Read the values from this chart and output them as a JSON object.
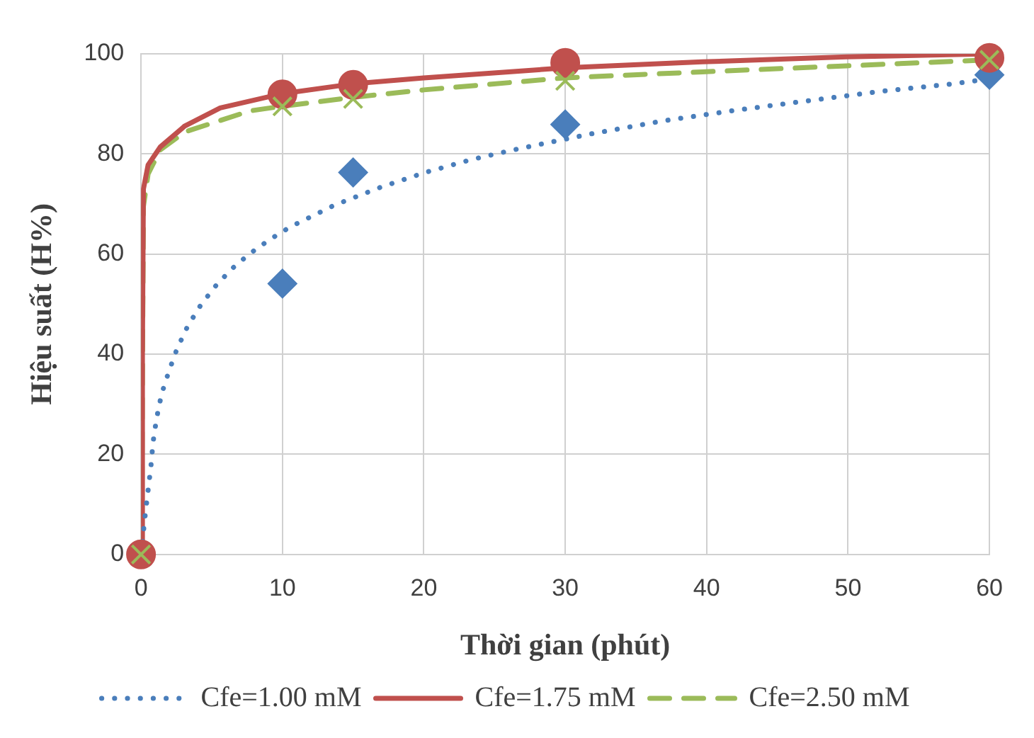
{
  "chart_data": {
    "type": "scatter",
    "xlabel": "Thời gian (phút)",
    "ylabel": "Hiệu suất (H%)",
    "xlim": [
      0,
      60
    ],
    "ylim": [
      0,
      100
    ],
    "xticks": [
      0,
      10,
      20,
      30,
      40,
      50,
      60
    ],
    "yticks": [
      0,
      20,
      40,
      60,
      80,
      100
    ],
    "grid": true,
    "legend": "bottom",
    "series": [
      {
        "type": "scatter",
        "color": "#4a7ebb",
        "marker": "diamond",
        "x": [
          10,
          15,
          30,
          60
        ],
        "values": [
          54.1,
          76.3,
          85.9,
          95.8
        ]
      },
      {
        "type": "scatter",
        "color": "#c0504d",
        "marker": "circle",
        "x": [
          0,
          10,
          15,
          30,
          60
        ],
        "values": [
          0,
          91.9,
          93.8,
          98.2,
          99.2
        ]
      },
      {
        "type": "scatter",
        "color": "#9bbb59",
        "marker": "cross",
        "x": [
          0,
          10,
          15,
          30,
          60
        ],
        "values": [
          0,
          89.5,
          91,
          94.6,
          98.8
        ]
      },
      {
        "type": "line",
        "name": "Cfe=1.00 mM",
        "color": "#4a7ebb",
        "line_style": "dotted",
        "marker": "none",
        "x": [
          0.05,
          0.15,
          0.3,
          0.5,
          0.7,
          0.85,
          1.1,
          1.45,
          1.96,
          2.55,
          3.3,
          4.2,
          5.2,
          6.4,
          7.7,
          9.1,
          10.6,
          13.7,
          16.9,
          20.1,
          23.4,
          26.8,
          31.8,
          36.9,
          42,
          47.1,
          52.3,
          57.4,
          60
        ],
        "values": [
          0,
          4,
          8,
          12.8,
          17.6,
          22.4,
          27.2,
          32,
          36.5,
          41.1,
          45.6,
          49.7,
          53.4,
          57,
          60.1,
          62.9,
          65.5,
          69.8,
          73.3,
          76.3,
          78.9,
          81.1,
          84,
          86.6,
          88.7,
          90.6,
          92.5,
          94,
          95
        ]
      },
      {
        "type": "line",
        "name": "Cfe=1.75 mM",
        "color": "#c0504d",
        "line_style": "solid",
        "marker": "none",
        "x": [
          0.05,
          0.1,
          0.17,
          0.5,
          1.36,
          3.1,
          5.6,
          9.9,
          15,
          20,
          30,
          39.7,
          49.9,
          60
        ],
        "values": [
          0,
          40,
          73,
          77.8,
          81.4,
          85.6,
          89.2,
          92,
          94,
          95.2,
          97.2,
          98.4,
          99.4,
          100
        ]
      },
      {
        "type": "line",
        "name": "Cfe=2.50 mM",
        "color": "#9bbb59",
        "line_style": "dashed",
        "marker": "none",
        "x": [
          0.05,
          0.1,
          0.17,
          0.5,
          1.36,
          3.1,
          7.7,
          9.9,
          15,
          20,
          30,
          39.7,
          49.9,
          60
        ],
        "values": [
          0,
          35,
          69.5,
          76,
          80.8,
          84.4,
          88.6,
          89.5,
          91.3,
          92.8,
          95.2,
          96.4,
          97.6,
          98.8
        ]
      }
    ]
  }
}
